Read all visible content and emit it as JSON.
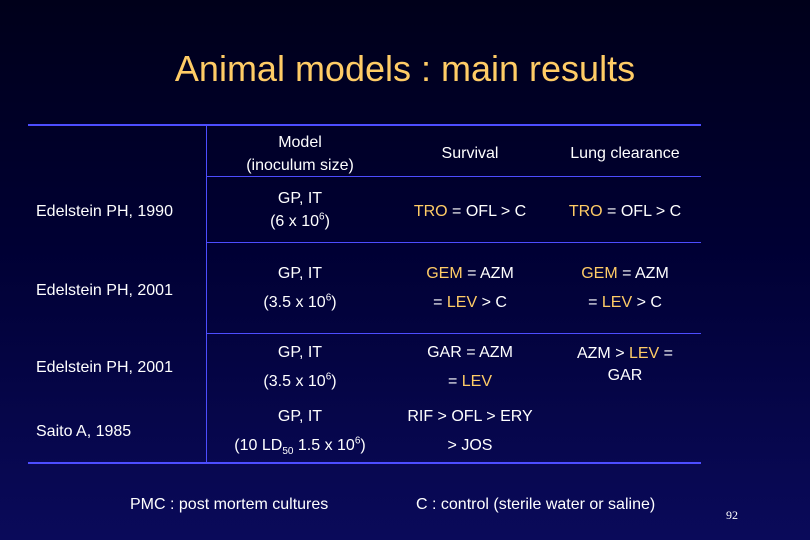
{
  "title": "Animal models : main results",
  "headers": {
    "model_line1": "Model",
    "model_line2": "(inoculum size)",
    "survival": "Survival",
    "lung_clearance": "Lung clearance"
  },
  "rows": [
    {
      "study": "Edelstein PH, 1990",
      "model_line1": "GP, IT",
      "model_pre": "(6 x 10",
      "model_sup": "6",
      "model_post": ")",
      "survival": {
        "a": "TRO",
        "b": " = OFL > C"
      },
      "lung": {
        "a": "TRO",
        "b": " = OFL > C"
      }
    },
    {
      "study": "Edelstein PH, 2001",
      "model_line1": "GP, IT",
      "model_pre": "(3.5 x 10",
      "model_sup": "6",
      "model_post": ")",
      "survival": {
        "a": "GEM",
        "b": "  = AZM",
        "c": "= ",
        "d": "LEV",
        "e": " > C"
      },
      "lung": {
        "a": "GEM",
        "b": "  = AZM",
        "c": "= ",
        "d": "LEV",
        "e": " > C"
      }
    },
    {
      "study": "Edelstein PH, 2001",
      "model_line1": "GP, IT",
      "model_pre": "(3.5 x 10",
      "model_sup": "6",
      "model_post": ")",
      "survival": {
        "a": "GAR = AZM",
        "c": "= ",
        "d": "LEV"
      },
      "lung": {
        "a": "AZM > ",
        "b": "LEV",
        "c": " =",
        "d": "GAR"
      }
    },
    {
      "study": "Saito A, 1985",
      "model_line1": "GP, IT",
      "model_pre": "(10 LD",
      "model_sub": "50",
      "model_mid": " 1.5 x 10",
      "model_sup": "6",
      "model_post": ")",
      "survival": {
        "a": "RIF > OFL > ERY",
        "c": "> JOS"
      }
    }
  ],
  "footer_left": "PMC : post mortem cultures",
  "footer_right": "C : control (sterile water or saline)",
  "page_number": "92",
  "colors": {
    "title": "#ffcc66",
    "highlight": "#ffcc66",
    "rules": "#4d4dff",
    "text": "#ffffff"
  }
}
